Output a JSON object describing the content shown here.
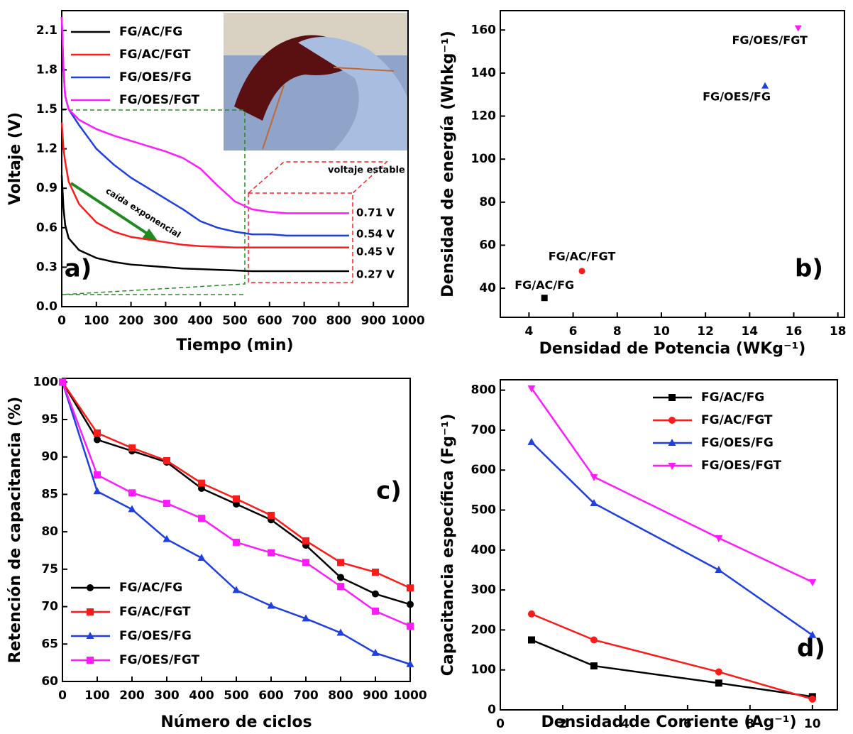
{
  "chart_data": [
    {
      "type": "line",
      "x_label": "Tiempo (min)",
      "y_label": "Voltaje (V)",
      "panel_label": "a)",
      "xlim": [
        0,
        1000
      ],
      "ylim": [
        0,
        2.25
      ],
      "xticks": [
        0,
        100,
        200,
        300,
        400,
        500,
        600,
        700,
        800,
        900,
        1000
      ],
      "yticks": [
        {
          "value": 0,
          "label": "0.0"
        },
        0.3,
        0.6,
        0.9,
        1.2,
        1.5,
        1.8,
        2.1
      ],
      "legend": "upper left",
      "x": [
        0,
        5,
        10,
        20,
        50,
        100,
        150,
        200,
        250,
        300,
        350,
        400,
        450,
        500,
        550,
        600,
        650,
        700,
        750,
        800,
        830
      ],
      "series": [
        {
          "name": "FG/AC/FG",
          "color": "#000000",
          "values": [
            1.0,
            0.75,
            0.62,
            0.52,
            0.43,
            0.37,
            0.34,
            0.32,
            0.31,
            0.3,
            0.29,
            0.285,
            0.28,
            0.275,
            0.27,
            0.27,
            0.27,
            0.27,
            0.27,
            0.27,
            0.27
          ]
        },
        {
          "name": "FG/AC/FGT",
          "color": "#ff1a1a",
          "values": [
            1.4,
            1.2,
            1.1,
            0.95,
            0.78,
            0.64,
            0.57,
            0.53,
            0.51,
            0.49,
            0.47,
            0.46,
            0.455,
            0.45,
            0.45,
            0.45,
            0.45,
            0.45,
            0.45,
            0.45,
            0.45
          ]
        },
        {
          "name": "FG/OES/FG",
          "color": "#1f3fe0",
          "values": [
            2.2,
            1.8,
            1.6,
            1.5,
            1.38,
            1.2,
            1.08,
            0.98,
            0.9,
            0.82,
            0.74,
            0.65,
            0.6,
            0.57,
            0.55,
            0.55,
            0.54,
            0.54,
            0.54,
            0.54,
            0.54
          ]
        },
        {
          "name": "FG/OES/FGT",
          "color": "#ff1aff",
          "values": [
            2.2,
            1.8,
            1.6,
            1.5,
            1.42,
            1.35,
            1.3,
            1.26,
            1.22,
            1.18,
            1.13,
            1.05,
            0.92,
            0.8,
            0.74,
            0.72,
            0.71,
            0.71,
            0.71,
            0.71,
            0.71
          ]
        }
      ],
      "annotations": [
        "caída exponencial",
        "voltaje estable",
        "0.71 V",
        "0.54 V",
        "0.45 V",
        "0.27 V"
      ]
    },
    {
      "type": "scatter",
      "x_label": "Densidad de Potencia (WKg⁻¹)",
      "y_label": "Densidad de energía (Whkg⁻¹)",
      "panel_label": "b)",
      "xlim": [
        2.7,
        18.3
      ],
      "ylim": [
        26.5,
        169
      ],
      "xticks": [
        4,
        6,
        8,
        10,
        12,
        14,
        16,
        18
      ],
      "yticks": [
        40,
        60,
        80,
        100,
        120,
        140,
        160
      ],
      "series": [
        {
          "name": "FG/AC/FG",
          "color": "#000000",
          "marker": "square",
          "x": [
            4.7
          ],
          "values": [
            35.5
          ]
        },
        {
          "name": "FG/AC/FGT",
          "color": "#ff1a1a",
          "marker": "circle",
          "x": [
            6.4
          ],
          "values": [
            48
          ]
        },
        {
          "name": "FG/OES/FG",
          "color": "#1f3fe0",
          "marker": "triangle",
          "x": [
            14.7
          ],
          "values": [
            134
          ]
        },
        {
          "name": "FG/OES/FGT",
          "color": "#ff1aff",
          "marker": "down-triangle",
          "x": [
            16.2
          ],
          "values": [
            161
          ]
        }
      ]
    },
    {
      "type": "line",
      "x_label": "Número de ciclos",
      "y_label": "Retención de capacitancia (%)",
      "panel_label": "c)",
      "xlim": [
        0,
        1000
      ],
      "ylim": [
        60,
        100.5
      ],
      "xticks": [
        0,
        100,
        200,
        300,
        400,
        500,
        600,
        700,
        800,
        900,
        1000
      ],
      "yticks": [
        60,
        65,
        70,
        75,
        80,
        85,
        90,
        95,
        100
      ],
      "legend": "lower left",
      "x": [
        0,
        100,
        200,
        300,
        400,
        500,
        600,
        700,
        800,
        900,
        1000
      ],
      "series": [
        {
          "name": "FG/AC/FG",
          "color": "#000000",
          "marker": "circle",
          "values": [
            100,
            92.3,
            90.8,
            89.3,
            85.8,
            83.7,
            81.6,
            78.2,
            73.9,
            71.7,
            70.3
          ]
        },
        {
          "name": "FG/AC/FGT",
          "color": "#ff1a1a",
          "marker": "square",
          "values": [
            100,
            93.2,
            91.2,
            89.5,
            86.5,
            84.4,
            82.2,
            78.8,
            75.9,
            74.6,
            72.5
          ]
        },
        {
          "name": "FG/OES/FG",
          "color": "#1f3fe0",
          "marker": "triangle",
          "values": [
            100,
            85.4,
            83.0,
            79.0,
            76.5,
            72.2,
            70.1,
            68.4,
            66.5,
            63.8,
            62.3
          ]
        },
        {
          "name": "FG/OES/FGT",
          "color": "#ff1aff",
          "marker": "square",
          "values": [
            100,
            87.6,
            85.2,
            83.8,
            81.8,
            78.6,
            77.2,
            75.9,
            72.7,
            69.4,
            67.4
          ]
        }
      ]
    },
    {
      "type": "line",
      "x_label": "Densidad de Corriente (Ag⁻¹)",
      "y_label": "Capacitancia específica (Fg⁻¹)",
      "panel_label": "d)",
      "xlim": [
        0,
        10.8
      ],
      "ylim": [
        0,
        826
      ],
      "xticks": [
        0,
        2,
        4,
        6,
        8,
        10
      ],
      "yticks": [
        0,
        100,
        200,
        300,
        400,
        500,
        600,
        700,
        800
      ],
      "legend": "upper right",
      "x": [
        1,
        3,
        7,
        10
      ],
      "series": [
        {
          "name": "FG/AC/FG",
          "color": "#000000",
          "marker": "square",
          "values": [
            175,
            110,
            67,
            33
          ]
        },
        {
          "name": "FG/AC/FGT",
          "color": "#ff1a1a",
          "marker": "circle",
          "values": [
            240,
            175,
            95,
            27
          ]
        },
        {
          "name": "FG/OES/FG",
          "color": "#1f3fe0",
          "marker": "triangle",
          "values": [
            670,
            517,
            350,
            187
          ]
        },
        {
          "name": "FG/OES/FGT",
          "color": "#ff1aff",
          "marker": "down-triangle",
          "values": [
            805,
            583,
            430,
            320
          ]
        }
      ]
    }
  ]
}
